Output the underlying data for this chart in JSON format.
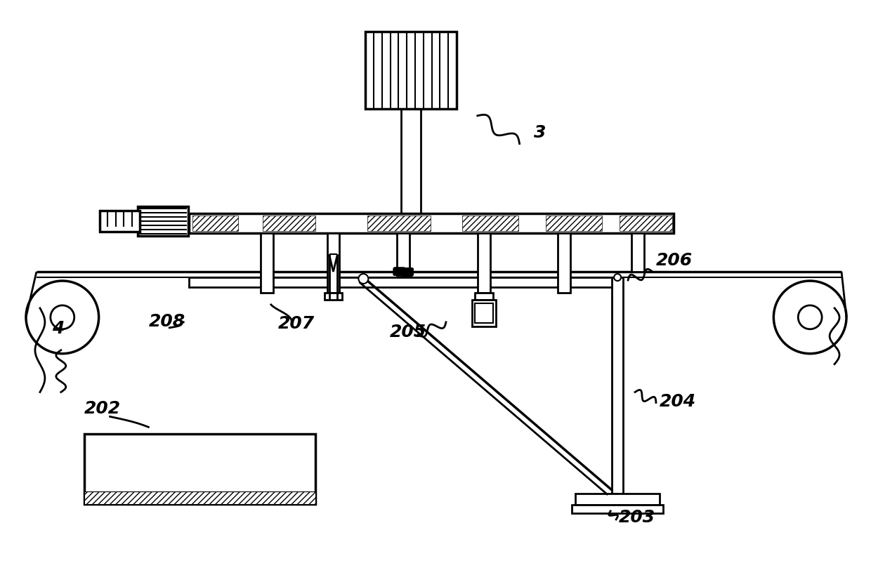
{
  "background_color": "#ffffff",
  "line_color": "#000000",
  "lw": 1.5,
  "lw2": 2.0,
  "lw3": 2.5,
  "label_fontsize": 18
}
